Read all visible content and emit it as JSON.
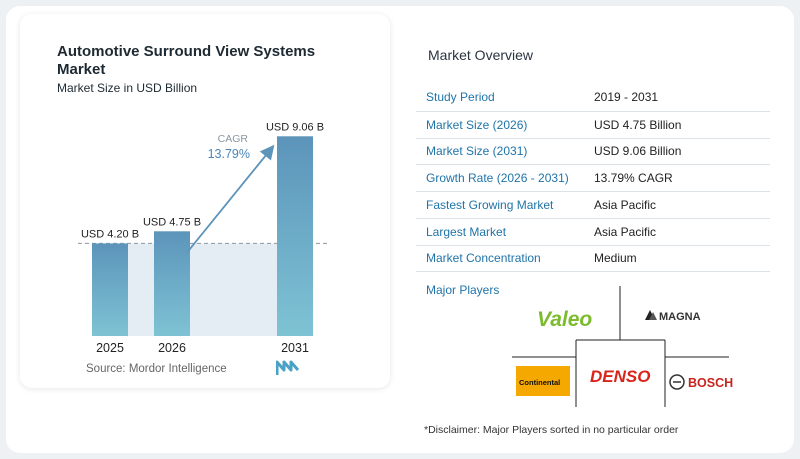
{
  "chart_data": {
    "type": "bar",
    "title": "Automotive Surround View Systems Market",
    "subtitle": "Market Size in USD Billion",
    "categories": [
      "2025",
      "2026",
      "2031"
    ],
    "values": [
      4.2,
      4.75,
      9.06
    ],
    "value_labels": [
      "USD 4.20 B",
      "USD 4.75 B",
      "USD 9.06 B"
    ],
    "ylim": [
      0,
      10
    ],
    "xlabel": "",
    "ylabel": "",
    "cagr_label": "CAGR",
    "cagr_value": "13.79%",
    "colors": {
      "bar_top": "#5c94ba",
      "bar_bottom": "#7ec3d4",
      "arrow": "#5c94ba",
      "cagr_value": "#4a86b8",
      "band": "#e4edf4"
    }
  },
  "source": "Source: Mordor Intelligence",
  "market_overview": {
    "title": "Market Overview",
    "rows": [
      {
        "key": "Study Period",
        "value": "2019 - 2031"
      },
      {
        "key": "Market Size (2026)",
        "value": "USD 4.75 Billion"
      },
      {
        "key": "Market Size (2031)",
        "value": "USD 9.06 Billion"
      },
      {
        "key": "Growth Rate (2026 - 2031)",
        "value": "13.79% CAGR"
      },
      {
        "key": "Fastest Growing Market",
        "value": "Asia Pacific"
      },
      {
        "key": "Largest Market",
        "value": "Asia Pacific"
      },
      {
        "key": "Market Concentration",
        "value": "Medium"
      }
    ]
  },
  "major_players": {
    "title": "Major Players",
    "logos": [
      "Valeo",
      "MAGNA",
      "Continental",
      "DENSO",
      "BOSCH"
    ]
  },
  "disclaimer": "*Disclaimer: Major Players sorted in no particular order"
}
